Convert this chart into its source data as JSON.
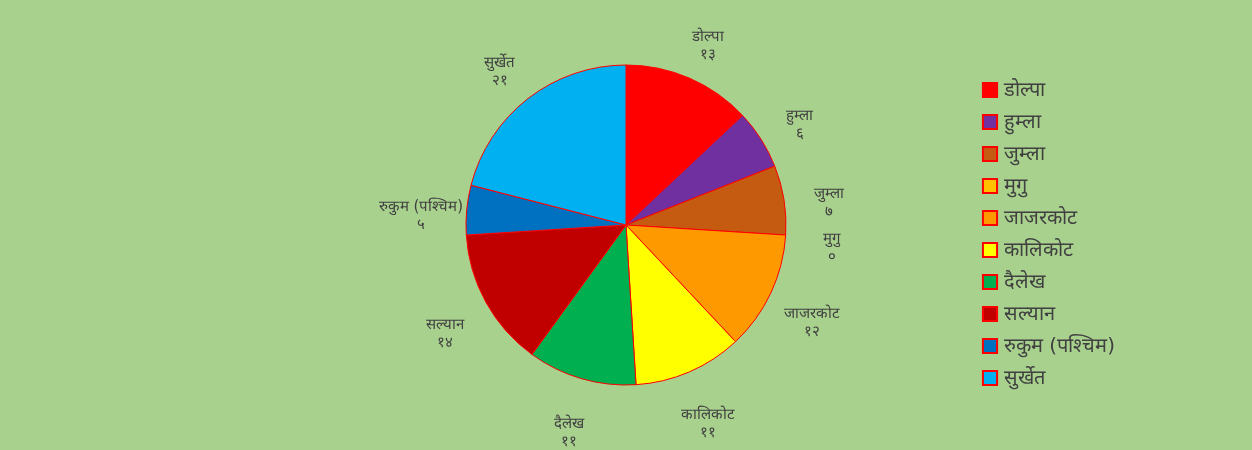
{
  "chart_data": {
    "type": "pie",
    "categories": [
      "डोल्पा",
      "हुम्ला",
      "जुम्ला",
      "मुगु",
      "जाजरकोट",
      "कालिकोट",
      "दैलेख",
      "सल्यान",
      "रुकुम (पश्चिम)",
      "सुर्खेत"
    ],
    "values": [
      13,
      6,
      7,
      0,
      12,
      11,
      11,
      14,
      5,
      21
    ],
    "value_labels": [
      "१३",
      "६",
      "७",
      "०",
      "१२",
      "११",
      "११",
      "१४",
      "५",
      "२१"
    ],
    "colors": [
      "#ff0000",
      "#7030a0",
      "#c55a11",
      "#ffc000",
      "#ff9900",
      "#ffff00",
      "#00b050",
      "#c00000",
      "#0070c0",
      "#00b0f0"
    ],
    "legend": "right"
  }
}
